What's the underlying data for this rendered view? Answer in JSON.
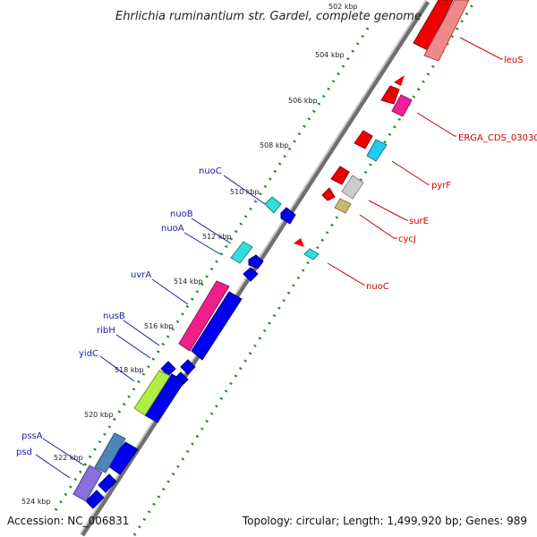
{
  "title": "Ehrlichia ruminantium str. Gardel, complete genome",
  "ticks": [
    "502 kbp",
    "504 kbp",
    "506 kbp",
    "508 kbp",
    "510 kbp",
    "512 kbp",
    "514 kbp",
    "516 kbp",
    "518 kbp",
    "520 kbp",
    "522 kbp",
    "524 kbp"
  ],
  "genes_left": [
    "nuoC",
    "nuoB",
    "nuoA",
    "uvrA",
    "nusB",
    "ribH",
    "yidC",
    "pssA",
    "psd"
  ],
  "genes_right": [
    "leuS",
    "ERGA_CDS_03030",
    "pyrF",
    "surE",
    "cycJ",
    "nuoC"
  ],
  "footer": {
    "accession": "Accession: NC_006831",
    "summary": "Topology: circular; Length: 1,499,920 bp; Genes: 989"
  },
  "colors": {
    "backbone": "#9a9a9a",
    "dots": "#1f8a1f",
    "forward_gene": "#0000ee",
    "reverse_gene": "#ee0000",
    "label_blue": "#1a1aa6",
    "label_red": "#cc0000"
  }
}
